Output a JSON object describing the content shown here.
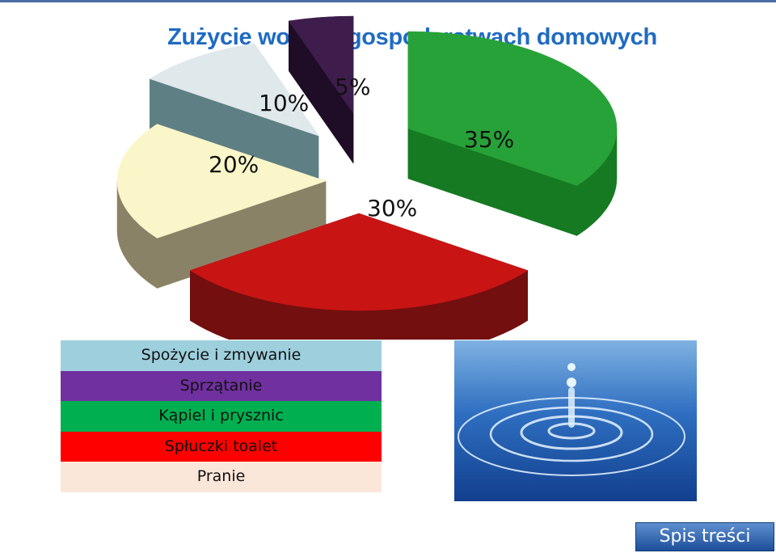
{
  "chart_data": {
    "type": "pie",
    "title": "Zużycie wody w gospodarstwach domowych",
    "slices": [
      {
        "label": "Spożycie i zmywanie",
        "value": 10,
        "value_label": "10%",
        "color": "#dfe9ec",
        "side": "#5e7f83"
      },
      {
        "label": "Sprzątanie",
        "value": 5,
        "value_label": "5%",
        "color": "#3e1d4c",
        "side": "#1f0d28"
      },
      {
        "label": "Kąpiel i prysznic",
        "value": 35,
        "value_label": "35%",
        "color": "#27a238",
        "side": "#157a22"
      },
      {
        "label": "Spłuczki toalet",
        "value": 30,
        "value_label": "30%",
        "color": "#c91414",
        "side": "#730f0f"
      },
      {
        "label": "Pranie",
        "value": 20,
        "value_label": "20%",
        "color": "#fbf6c9",
        "side": "#8a8266"
      }
    ],
    "legend": [
      {
        "label": "Spożycie i zmywanie",
        "color": "#9dcfdd"
      },
      {
        "label": "Sprzątanie",
        "color": "#7030a0"
      },
      {
        "label": "Kąpiel i prysznic",
        "color": "#00b050"
      },
      {
        "label": "Spłuczki toalet",
        "color": "#ff0000"
      },
      {
        "label": "Pranie",
        "color": "#fbe7d9"
      }
    ],
    "legend_placement": "bottom-left"
  },
  "nav": {
    "toc_label": "Spis treści"
  }
}
